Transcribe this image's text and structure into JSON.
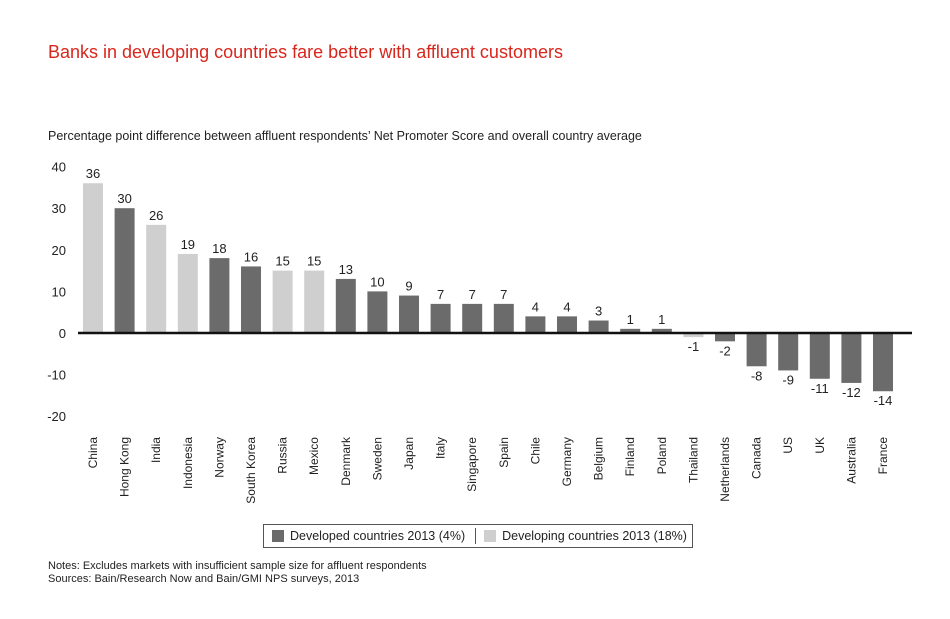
{
  "title": "Banks in developing countries fare better with affluent customers",
  "subtitle": "Percentage point difference between affluent respondents’ Net Promoter Score and overall country average",
  "notes": "Notes: Excludes markets with insufficient sample size for affluent respondents",
  "sources": "Sources: Bain/Research Now and Bain/GMI NPS surveys, 2013",
  "colors": {
    "title": "#d9261c",
    "developed": "#6b6b6b",
    "developing": "#cfcfcf",
    "axis": "#111111"
  },
  "legend": [
    {
      "label": "Developed countries 2013 (4%)",
      "group": "developed"
    },
    {
      "label": "Developing countries 2013 (18%)",
      "group": "developing"
    }
  ],
  "chart_data": {
    "type": "bar",
    "title": "Banks in developing countries fare better with affluent customers",
    "ylabel": "Percentage point difference between affluent respondents’ Net Promoter Score and overall country average",
    "ylim": [
      -20,
      40
    ],
    "yticks": [
      40,
      30,
      20,
      10,
      0,
      -10,
      -20
    ],
    "grid": false,
    "legend_position": "bottom",
    "categories": [
      "China",
      "Hong Kong",
      "India",
      "Indonesia",
      "Norway",
      "South Korea",
      "Russia",
      "Mexico",
      "Denmark",
      "Sweden",
      "Japan",
      "Italy",
      "Singapore",
      "Spain",
      "Chile",
      "Germany",
      "Belgium",
      "Finland",
      "Poland",
      "Thailand",
      "Netherlands",
      "Canada",
      "US",
      "UK",
      "Australia",
      "France"
    ],
    "values": [
      36,
      30,
      26,
      19,
      18,
      16,
      15,
      15,
      13,
      10,
      9,
      7,
      7,
      7,
      4,
      4,
      3,
      1,
      1,
      -1,
      -2,
      -8,
      -9,
      -11,
      -12,
      -14
    ],
    "groups": [
      "developing",
      "developed",
      "developing",
      "developing",
      "developed",
      "developed",
      "developing",
      "developing",
      "developed",
      "developed",
      "developed",
      "developed",
      "developed",
      "developed",
      "developed",
      "developed",
      "developed",
      "developed",
      "developed",
      "developing",
      "developed",
      "developed",
      "developed",
      "developed",
      "developed",
      "developed"
    ]
  }
}
